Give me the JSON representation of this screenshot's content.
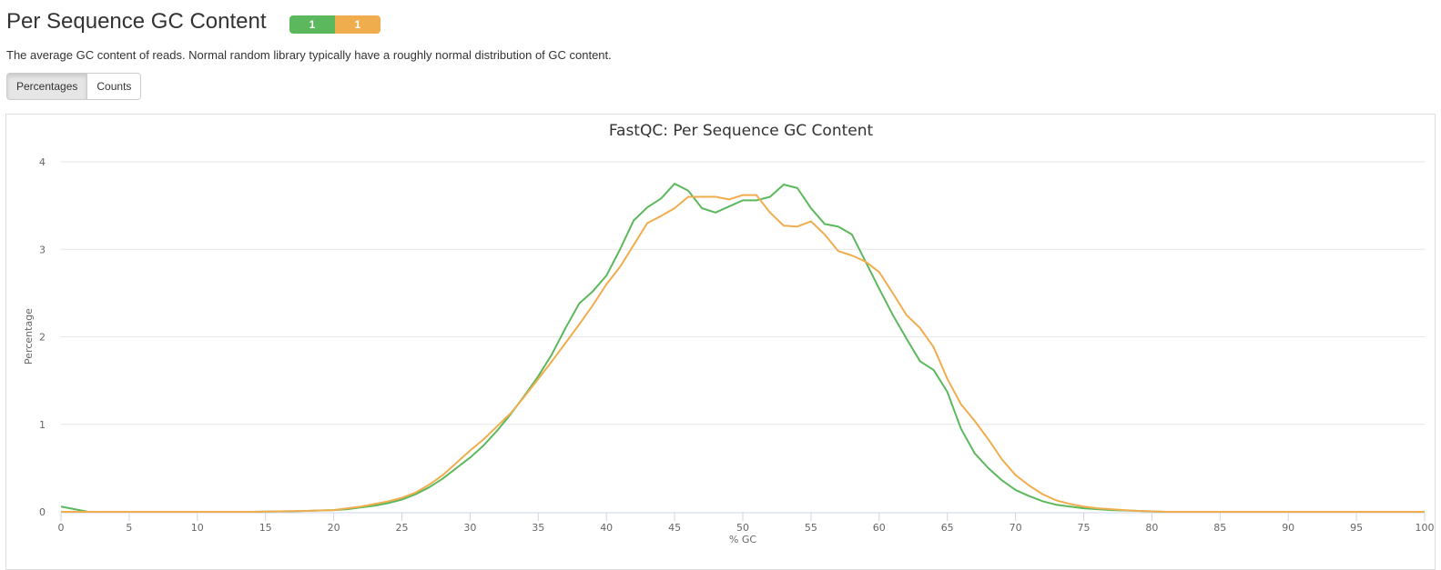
{
  "header": {
    "title": "Per Sequence GC Content",
    "badges": [
      {
        "label": "1",
        "color": "#5cb85c"
      },
      {
        "label": "1",
        "color": "#f0ad4e"
      }
    ]
  },
  "description": "The average GC content of reads. Normal random library typically have a roughly normal distribution of GC content.",
  "toggle": {
    "buttons": [
      "Percentages",
      "Counts"
    ],
    "active": "Percentages"
  },
  "chart_data": {
    "type": "line",
    "title": "FastQC: Per Sequence GC Content",
    "xlabel": "% GC",
    "ylabel": "Percentage",
    "xlim": [
      0,
      100
    ],
    "ylim": [
      0,
      4
    ],
    "xticks": [
      "0",
      "5",
      "10",
      "15",
      "20",
      "25",
      "30",
      "35",
      "40",
      "45",
      "50",
      "55",
      "60",
      "65",
      "70",
      "75",
      "80",
      "85",
      "90",
      "95",
      "100"
    ],
    "yticks": [
      "0",
      "1",
      "2",
      "3",
      "4"
    ],
    "grid": true,
    "series": [
      {
        "color": "#5cb85c",
        "values": [
          0.06,
          0.03,
          0,
          0,
          0,
          0,
          0,
          0,
          0,
          0,
          0,
          0,
          0,
          0,
          0,
          0.003,
          0.005,
          0.007,
          0.01,
          0.015,
          0.02,
          0.03,
          0.05,
          0.07,
          0.1,
          0.14,
          0.2,
          0.28,
          0.38,
          0.5,
          0.62,
          0.76,
          0.93,
          1.12,
          1.33,
          1.55,
          1.8,
          2.1,
          2.38,
          2.52,
          2.7,
          3.0,
          3.33,
          3.48,
          3.58,
          3.75,
          3.67,
          3.47,
          3.42,
          3.49,
          3.56,
          3.56,
          3.6,
          3.74,
          3.7,
          3.47,
          3.29,
          3.26,
          3.17,
          2.86,
          2.55,
          2.25,
          1.98,
          1.72,
          1.62,
          1.37,
          0.95,
          0.67,
          0.5,
          0.36,
          0.25,
          0.18,
          0.12,
          0.08,
          0.06,
          0.04,
          0.03,
          0.02,
          0.015,
          0.01,
          0.005,
          0,
          0,
          0,
          0,
          0,
          0,
          0,
          0,
          0,
          0,
          0,
          0,
          0,
          0,
          0,
          0,
          0,
          0,
          0,
          0
        ]
      },
      {
        "color": "#f0ad4e",
        "values": [
          0,
          0,
          0,
          0,
          0,
          0,
          0,
          0,
          0,
          0,
          0,
          0,
          0,
          0,
          0,
          0.003,
          0.005,
          0.008,
          0.01,
          0.015,
          0.02,
          0.04,
          0.06,
          0.09,
          0.12,
          0.16,
          0.22,
          0.31,
          0.42,
          0.56,
          0.7,
          0.83,
          0.98,
          1.13,
          1.32,
          1.52,
          1.72,
          1.93,
          2.14,
          2.36,
          2.6,
          2.8,
          3.05,
          3.3,
          3.38,
          3.47,
          3.6,
          3.6,
          3.6,
          3.57,
          3.62,
          3.62,
          3.42,
          3.27,
          3.26,
          3.32,
          3.17,
          2.98,
          2.93,
          2.86,
          2.74,
          2.5,
          2.25,
          2.1,
          1.88,
          1.52,
          1.23,
          1.04,
          0.83,
          0.6,
          0.42,
          0.3,
          0.2,
          0.13,
          0.09,
          0.06,
          0.04,
          0.03,
          0.02,
          0.01,
          0.005,
          0,
          0,
          0,
          0,
          0,
          0,
          0,
          0,
          0,
          0,
          0,
          0,
          0,
          0,
          0,
          0,
          0,
          0,
          0,
          0
        ]
      }
    ]
  }
}
